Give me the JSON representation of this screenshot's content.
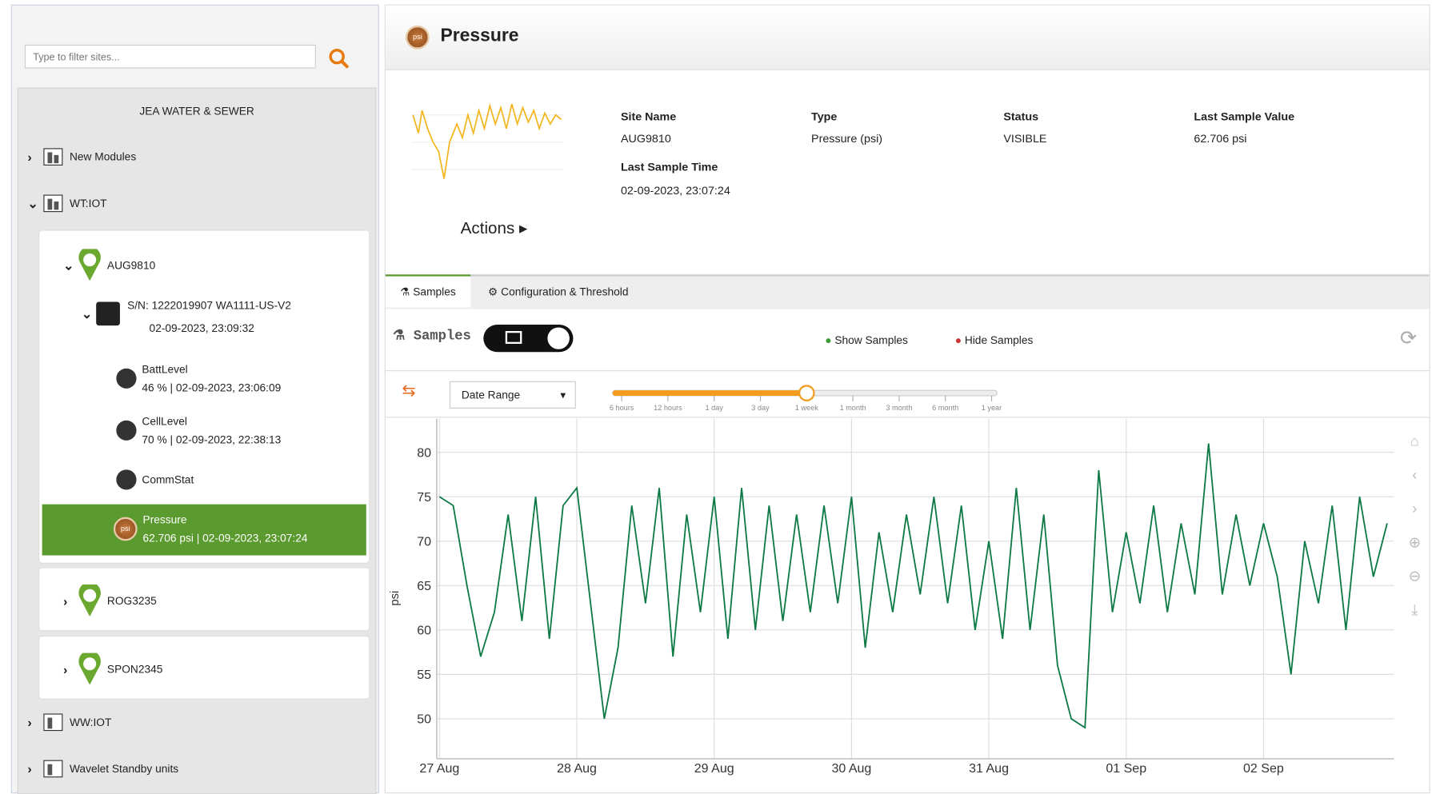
{
  "sidebar": {
    "filter_placeholder": "Type to filter sites...",
    "org": "JEA WATER & SEWER",
    "groups": [
      "New Modules",
      "WT:IOT",
      "WW:IOT",
      "Wavelet Standby units"
    ],
    "sites": [
      "AUG9810",
      "ROG3235",
      "SPON2345"
    ],
    "device": {
      "serial": "S/N: 1222019907 WA1111-US-V2",
      "time": "02-09-2023, 23:09:32"
    },
    "sensors": [
      {
        "name": "BattLevel",
        "info": "46 % | 02-09-2023, 23:06:09"
      },
      {
        "name": "CellLevel",
        "info": "70 % | 02-09-2023, 22:38:13"
      },
      {
        "name": "CommStat"
      },
      {
        "name": "Pressure",
        "badge": "psi",
        "info": "62.706 psi | 02-09-2023, 23:07:24"
      }
    ]
  },
  "header": {
    "badge": "psi",
    "title": "Pressure"
  },
  "details": {
    "actions": "Actions",
    "fields": [
      {
        "label": "Site Name",
        "value": "AUG9810"
      },
      {
        "label": "Type",
        "value": "Pressure (psi)"
      },
      {
        "label": "Status",
        "value": "VISIBLE"
      },
      {
        "label": "Last Sample Value",
        "value": "62.706 psi"
      },
      {
        "label": "Last Sample Time",
        "value": "02-09-2023, 23:07:24"
      }
    ]
  },
  "tabs": [
    "Samples",
    "Configuration & Threshold"
  ],
  "toolbar": {
    "label": "Samples",
    "show": "Show Samples",
    "hide": "Hide Samples",
    "range_select": "Date Range",
    "range_stops": [
      "6 hours",
      "12 hours",
      "1 day",
      "3 day",
      "1 week",
      "1 month",
      "3 month",
      "6 month",
      "1 year"
    ]
  },
  "chart_data": {
    "type": "line",
    "ylabel": "psi",
    "color": "#0e7a45",
    "grid": true,
    "x": [
      0,
      0.1,
      0.2,
      0.3,
      0.4,
      0.5,
      0.6,
      0.7,
      0.8,
      0.9,
      1,
      1.1,
      1.2,
      1.3,
      1.4,
      1.5,
      1.6,
      1.7,
      1.8,
      1.9,
      2,
      2.1,
      2.2,
      2.3,
      2.4,
      2.5,
      2.6,
      2.7,
      2.8,
      2.9,
      3,
      3.1,
      3.2,
      3.3,
      3.4,
      3.5,
      3.6,
      3.7,
      3.8,
      3.9,
      4,
      4.1,
      4.2,
      4.3,
      4.4,
      4.5,
      4.6,
      4.7,
      4.8,
      4.9,
      5,
      5.1,
      5.2,
      5.3,
      5.4,
      5.5,
      5.6,
      5.7,
      5.8,
      5.9,
      6,
      6.1,
      6.2,
      6.3,
      6.4,
      6.5,
      6.6,
      6.7,
      6.8,
      6.9
    ],
    "values": [
      75,
      74,
      65,
      57,
      62,
      73,
      61,
      75,
      59,
      74,
      76,
      63,
      50,
      58,
      74,
      63,
      76,
      57,
      73,
      62,
      75,
      59,
      76,
      60,
      74,
      61,
      73,
      62,
      74,
      63,
      75,
      58,
      71,
      62,
      73,
      64,
      75,
      63,
      74,
      60,
      70,
      59,
      76,
      60,
      73,
      56,
      50,
      49,
      78,
      62,
      71,
      63,
      74,
      62,
      72,
      64,
      81,
      64,
      73,
      65,
      72,
      66,
      55,
      70,
      63,
      74,
      60,
      75,
      66,
      72
    ],
    "xlim": [
      -0.02,
      6.95
    ],
    "xticks": [
      {
        "value": 0,
        "label": "27 Aug"
      },
      {
        "value": 1,
        "label": "28 Aug"
      },
      {
        "value": 2,
        "label": "29 Aug"
      },
      {
        "value": 3,
        "label": "30 Aug"
      },
      {
        "value": 4,
        "label": "31 Aug"
      },
      {
        "value": 5,
        "label": "01 Sep"
      },
      {
        "value": 6,
        "label": "02 Sep"
      }
    ],
    "ylim": [
      45.5,
      83.8
    ],
    "yticks": [
      50,
      55,
      60,
      65,
      70,
      75,
      80
    ]
  }
}
